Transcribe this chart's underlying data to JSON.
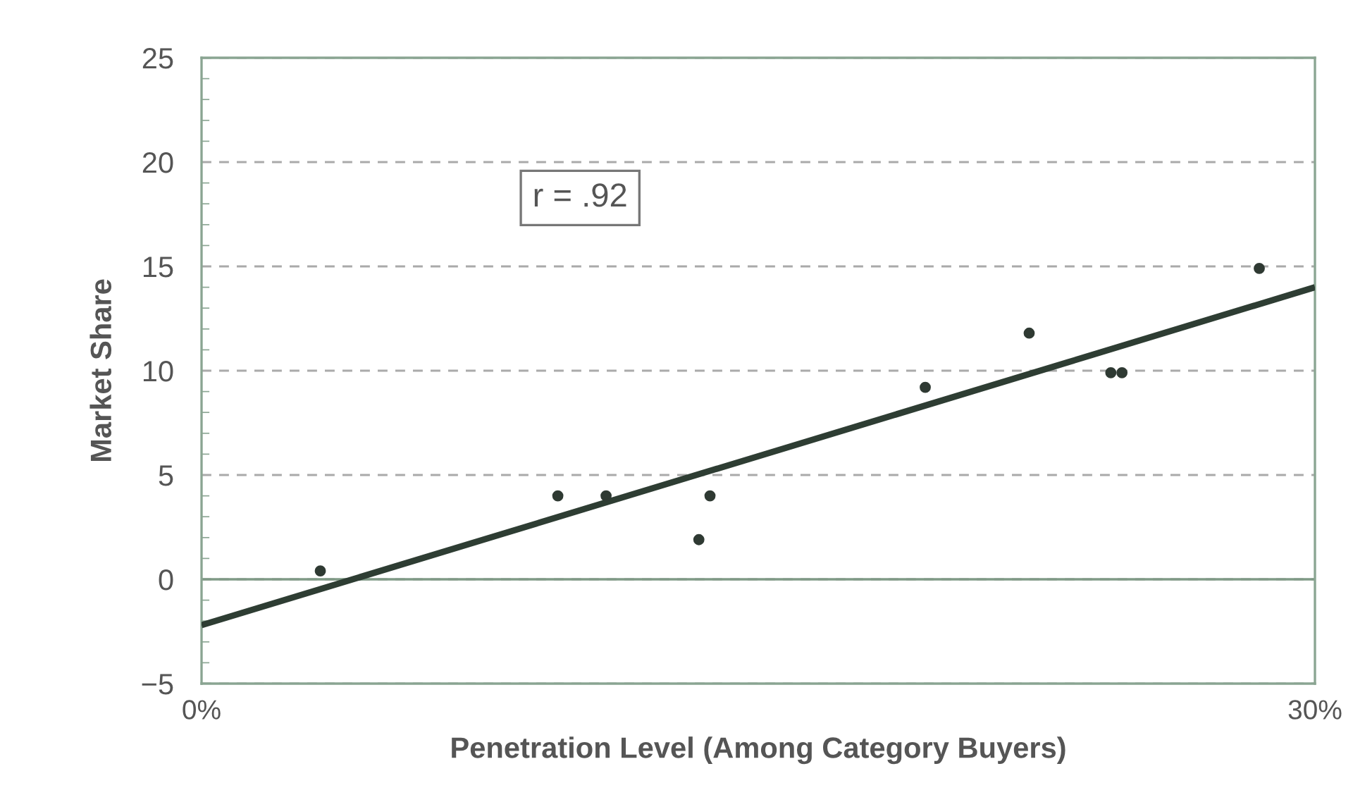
{
  "chart_data": {
    "type": "scatter",
    "xlabel": "Penetration Level (Among Category Buyers)",
    "ylabel": "Market Share",
    "xlim": [
      0,
      30
    ],
    "ylim": [
      -5,
      25
    ],
    "xticks": [
      {
        "value": 0,
        "label": "0%"
      },
      {
        "value": 30,
        "label": "30%"
      }
    ],
    "yticks": [
      {
        "value": -5,
        "label": "−5"
      },
      0,
      5,
      10,
      15,
      20,
      25
    ],
    "grid": "y",
    "series": [
      {
        "marker": "circle",
        "color": "#2f3a33",
        "x": [
          3.2,
          9.6,
          10.9,
          13.4,
          13.7,
          19.5,
          22.3,
          24.5,
          24.8,
          28.5
        ],
        "values": [
          0.4,
          4.0,
          4.0,
          1.9,
          4.0,
          9.2,
          11.8,
          9.9,
          9.9,
          14.9
        ]
      },
      {
        "type": "line",
        "marker": "none",
        "color": "#2e3d33",
        "x": [
          0,
          30
        ],
        "values": [
          -2.2,
          14.0
        ]
      }
    ],
    "ref_lines": [
      {
        "axis": "y",
        "value": 0,
        "color": "#7f9a86",
        "line_style": "solid"
      }
    ],
    "annotations": [
      "r = .92"
    ]
  }
}
